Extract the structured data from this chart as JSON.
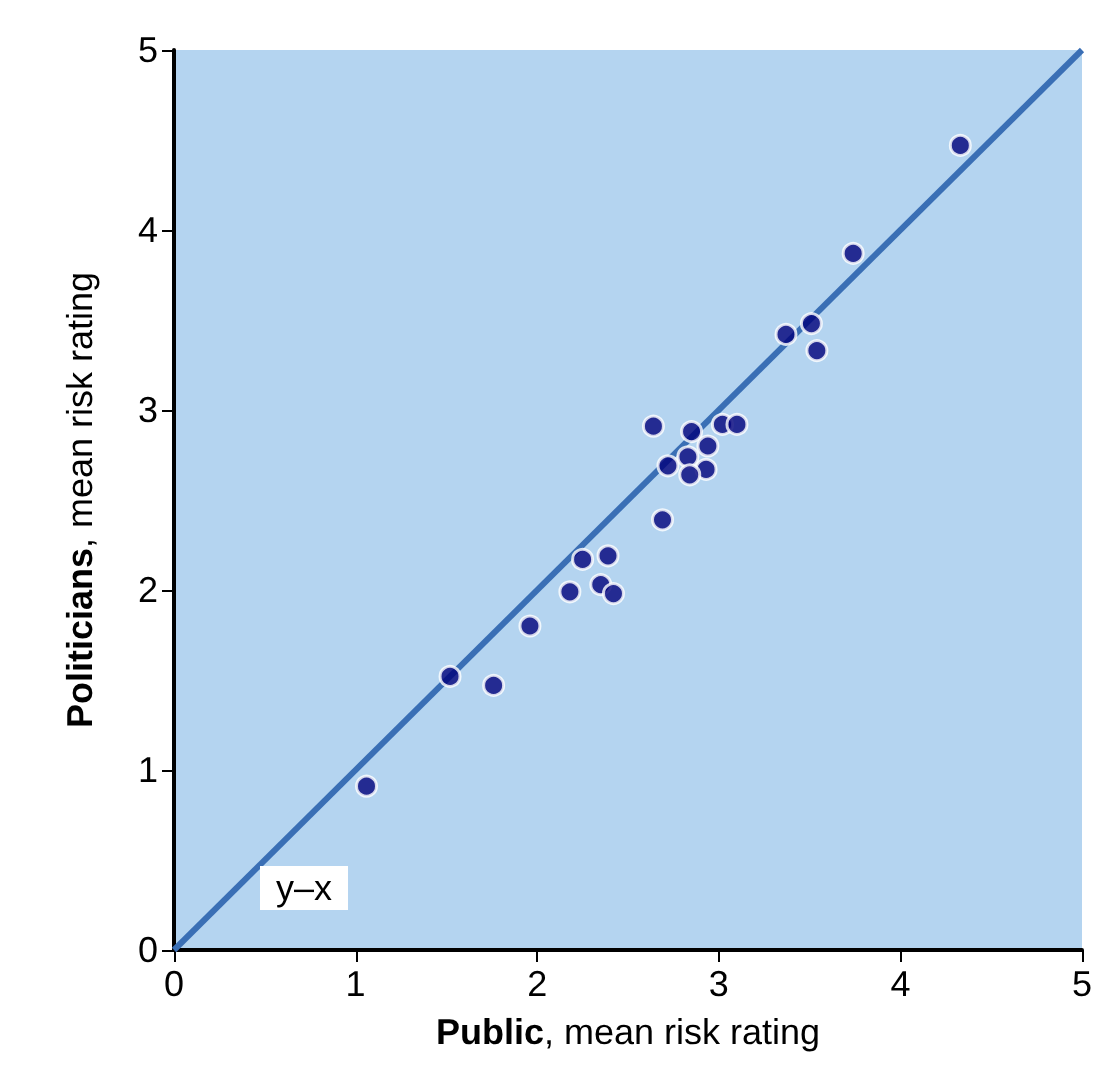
{
  "chart_data": {
    "type": "scatter",
    "xlabel": "Public, mean risk rating",
    "ylabel": "Politicians, mean risk rating",
    "xlim": [
      0,
      5
    ],
    "ylim": [
      0,
      5
    ],
    "xticks": [
      0,
      1,
      2,
      3,
      4,
      5
    ],
    "yticks": [
      0,
      1,
      2,
      3,
      4,
      5
    ],
    "grid": false,
    "marker": "circle",
    "series": [
      {
        "color": "#00007a",
        "x": [
          1.06,
          1.52,
          1.76,
          1.96,
          2.18,
          2.25,
          2.39,
          2.35,
          2.42,
          2.69,
          2.64,
          2.85,
          3.02,
          3.1,
          2.94,
          2.83,
          2.72,
          2.93,
          2.84,
          3.37,
          3.51,
          3.54,
          3.74,
          4.33
        ],
        "values": [
          0.91,
          1.52,
          1.47,
          1.8,
          1.99,
          2.17,
          2.19,
          2.03,
          1.98,
          2.39,
          2.91,
          2.88,
          2.92,
          2.92,
          2.8,
          2.74,
          2.69,
          2.67,
          2.64,
          3.42,
          3.48,
          3.33,
          3.87,
          4.47
        ]
      },
      {
        "type": "line",
        "color": "#3a6fb5",
        "x": [
          0,
          5
        ],
        "values": [
          0,
          5
        ],
        "marker": "none"
      }
    ],
    "annotations": [
      "y–x"
    ]
  }
}
